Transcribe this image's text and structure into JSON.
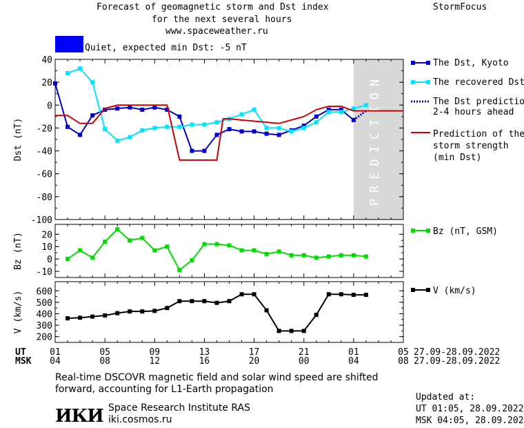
{
  "header": {
    "title_line1": "Forecast of geomagnetic storm and Dst index",
    "title_line2": "for the next several hours",
    "url": "www.spaceweather.ru",
    "brand": "StormFocus",
    "status_text": "Quiet, expected min Dst: -5 nT",
    "status_color": "#0000ff"
  },
  "prediction_label": "PREDICTION",
  "legend": {
    "dst_kyoto": "The Dst, Kyoto",
    "dst_recovered": "The recovered Dst",
    "dst_pred_l1": "The Dst prediction",
    "dst_pred_l2": "2-4 hours ahead",
    "storm_l1": "Prediction of the",
    "storm_l2": "storm strength",
    "storm_l3": "(min Dst)",
    "bz": "Bz (nT, GSM)",
    "v": "V (km/s)"
  },
  "axes": {
    "ut_label": "UT",
    "msk_label": "MSK",
    "ut_ticks": [
      "01",
      "05",
      "09",
      "13",
      "17",
      "21",
      "01",
      "05"
    ],
    "msk_ticks": [
      "04",
      "08",
      "12",
      "16",
      "20",
      "00",
      "04",
      "08"
    ],
    "date_range_ut": "27.09-28.09.2022",
    "date_range_msk": "27.09-28.09.2022"
  },
  "footer": {
    "note_l1": "Real-time DSCOVR magnetic field and solar wind speed are shifted",
    "note_l2": "forward, accounting for L1-Earth propagation",
    "logo_text": "ИКИ",
    "institute": "Space Research Institute RAS",
    "site": "iki.cosmos.ru",
    "updated_label": "Updated at:",
    "updated_ut": "UT  01:05, 28.09.2022",
    "updated_msk": "MSK 04:05, 28.09.2022"
  },
  "colors": {
    "dst_kyoto": "#0000cc",
    "dst_recovered": "#00e5ff",
    "dst_prediction": "#0000cc",
    "storm": "#cc0000",
    "bz": "#00dd00",
    "v": "#000000",
    "prediction_band": "#d8d8d8"
  },
  "chart_data": [
    {
      "type": "line",
      "ylabel": "Dst (nT)",
      "xlim": [
        0,
        28
      ],
      "ylim": [
        -100,
        40
      ],
      "yticks": [
        40,
        20,
        0,
        -20,
        -40,
        -60,
        -80,
        -100
      ],
      "prediction_band": [
        24,
        28
      ],
      "series": [
        {
          "name": "The Dst, Kyoto",
          "x": [
            0,
            1,
            2,
            3,
            4,
            5,
            6,
            7,
            8,
            9,
            10,
            11,
            12,
            13,
            14,
            15,
            16,
            17,
            18,
            19,
            20,
            21,
            22,
            23,
            24
          ],
          "y": [
            19,
            -19,
            -26,
            -9,
            -4,
            -3,
            -2,
            -4,
            -2,
            -4,
            -10,
            -40,
            -40,
            -26,
            -21,
            -23,
            -23,
            -25,
            -26,
            -22,
            -18,
            -10,
            -4,
            -4,
            -13
          ]
        },
        {
          "name": "The recovered Dst",
          "x": [
            1,
            2,
            3,
            4,
            5,
            6,
            7,
            8,
            9,
            10,
            11,
            12,
            13,
            14,
            15,
            16,
            17,
            18,
            19,
            20,
            21,
            22,
            23,
            24,
            25
          ],
          "y": [
            28,
            32,
            20,
            -21,
            -31,
            -28,
            -22,
            -20,
            -19,
            -19,
            -17,
            -17,
            -15,
            -12,
            -8,
            -4,
            -20,
            -20,
            -23,
            -20,
            -15,
            -6,
            -6,
            -3,
            0
          ]
        },
        {
          "name": "The Dst prediction 2-4 hours ahead",
          "x": [
            24,
            25
          ],
          "y": [
            -13,
            -5
          ]
        },
        {
          "name": "Prediction of the storm strength (min Dst)",
          "x": [
            0,
            1,
            2,
            3,
            4,
            5,
            6,
            7,
            8,
            9,
            10,
            11,
            12,
            13,
            13.5,
            14,
            15,
            16,
            17,
            18,
            19,
            20,
            21,
            22,
            23,
            24,
            25,
            26,
            27,
            28
          ],
          "y": [
            -9,
            -9,
            -16,
            -16,
            -3,
            0,
            0,
            0,
            0,
            0,
            -48,
            -48,
            -48,
            -48,
            -12,
            -12,
            -13,
            -14,
            -15,
            -16,
            -13,
            -10,
            -4,
            -1,
            -1,
            -5,
            -5,
            -5,
            -5,
            -5
          ]
        }
      ]
    },
    {
      "type": "line",
      "ylabel": "Bz (nT)",
      "xlim": [
        0,
        28
      ],
      "ylim": [
        -15,
        28
      ],
      "yticks": [
        20,
        10,
        0,
        -10
      ],
      "series": [
        {
          "name": "Bz (nT, GSM)",
          "x": [
            1,
            2,
            3,
            4,
            5,
            6,
            7,
            8,
            9,
            10,
            11,
            12,
            13,
            14,
            15,
            16,
            17,
            18,
            19,
            20,
            21,
            22,
            23,
            24,
            25
          ],
          "y": [
            0,
            7,
            1,
            14,
            24,
            15,
            17,
            7,
            10,
            -9,
            -1,
            12,
            12,
            11,
            7,
            7,
            4,
            6,
            3,
            3,
            1,
            2,
            3,
            3,
            2
          ]
        }
      ]
    },
    {
      "type": "line",
      "ylabel": "V (km/s)",
      "xlim": [
        0,
        28
      ],
      "ylim": [
        150,
        680
      ],
      "yticks": [
        600,
        500,
        400,
        300,
        200
      ],
      "series": [
        {
          "name": "V (km/s)",
          "x": [
            1,
            2,
            3,
            4,
            5,
            6,
            7,
            8,
            9,
            10,
            11,
            12,
            13,
            14,
            15,
            16,
            17,
            18,
            19,
            20,
            21,
            22,
            23,
            24,
            25
          ],
          "y": [
            360,
            365,
            375,
            385,
            405,
            420,
            420,
            425,
            450,
            510,
            510,
            510,
            495,
            510,
            570,
            570,
            430,
            250,
            250,
            250,
            390,
            570,
            570,
            565,
            565
          ]
        }
      ]
    }
  ]
}
